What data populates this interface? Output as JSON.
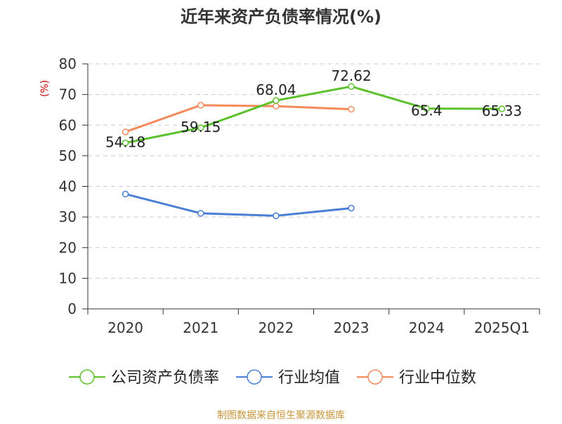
{
  "chart_data": {
    "type": "line",
    "title": "近年来资产负债率情况(%)",
    "ylabel": "(%)",
    "xlabel": "",
    "categories": [
      "2020",
      "2021",
      "2022",
      "2023",
      "2024",
      "2025Q1"
    ],
    "yticks": [
      0,
      10,
      20,
      30,
      40,
      50,
      60,
      70,
      80
    ],
    "ylim": [
      0,
      80
    ],
    "grid": "horizontal-dashed",
    "legend_position": "bottom",
    "series": [
      {
        "name": "公司资产负债率",
        "color": "#5cc22c",
        "values": [
          54.18,
          59.15,
          68.04,
          72.62,
          65.4,
          65.33
        ],
        "labels": [
          "54.18",
          "59.15",
          "68.04",
          "72.62",
          "65.4",
          "65.33"
        ]
      },
      {
        "name": "行业均值",
        "color": "#4a7fd6",
        "values": [
          37.5,
          31.2,
          30.4,
          32.9,
          null,
          null
        ]
      },
      {
        "name": "行业中位数",
        "color": "#f48a5a",
        "values": [
          57.8,
          66.5,
          66.2,
          65.2,
          null,
          null
        ]
      }
    ],
    "source": "制图数据来自恒生聚源数据库",
    "source_color": "#c8963c",
    "ylabel_color": "#cc0000"
  }
}
